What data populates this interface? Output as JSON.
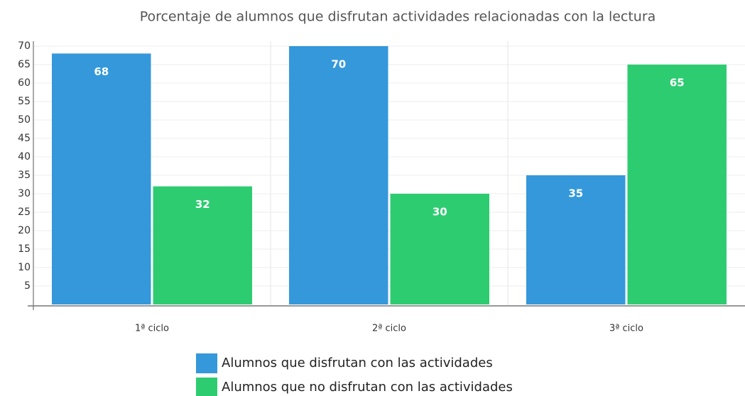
{
  "chart_data": {
    "type": "bar",
    "title": "Porcentaje de alumnos que disfrutan actividades relacionadas con la lectura",
    "categories": [
      "1ª ciclo",
      "2ª ciclo",
      "3ª ciclo"
    ],
    "series": [
      {
        "name": "Alumnos que disfrutan con las actividades",
        "color": "#3498db",
        "values": [
          68,
          70,
          35
        ]
      },
      {
        "name": "Alumnos que no disfrutan con las actividades",
        "color": "#2ecc71",
        "values": [
          32,
          30,
          65
        ]
      }
    ],
    "ylim": [
      0,
      70
    ],
    "yticks": [
      5,
      10,
      15,
      20,
      25,
      30,
      35,
      40,
      45,
      50,
      55,
      60,
      65,
      70
    ],
    "grid": true
  }
}
